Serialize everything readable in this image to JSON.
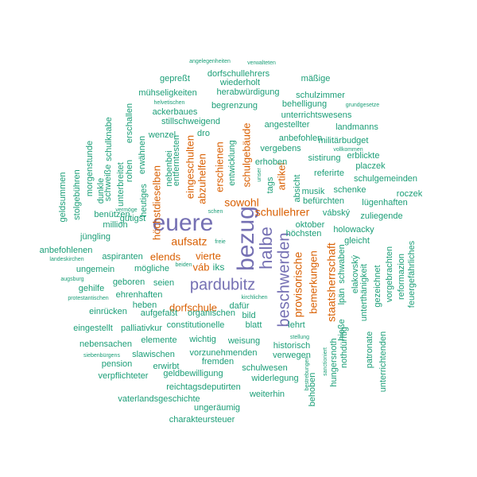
{
  "palette": {
    "green": "#1b9e77",
    "orange": "#d95f02",
    "purple": "#7570b3"
  },
  "words": [
    {
      "text": "bezug",
      "color": "purple"
    },
    {
      "text": "euere",
      "color": "purple"
    },
    {
      "text": "halbe",
      "color": "purple"
    },
    {
      "text": "beschwerden",
      "color": "purple"
    },
    {
      "text": "pardubitz",
      "color": "purple"
    },
    {
      "text": "schullehrer",
      "color": "orange"
    },
    {
      "text": "staatsherrschaft",
      "color": "orange"
    },
    {
      "text": "provisorische",
      "color": "orange"
    },
    {
      "text": "sowohl",
      "color": "orange"
    },
    {
      "text": "höchstdieselben",
      "color": "orange"
    },
    {
      "text": "aufsatz",
      "color": "orange"
    },
    {
      "text": "elends",
      "color": "orange"
    },
    {
      "text": "vierte",
      "color": "orange"
    },
    {
      "text": "dorfschule",
      "color": "orange"
    },
    {
      "text": "erschienen",
      "color": "orange"
    },
    {
      "text": "eingeschulten",
      "color": "orange"
    },
    {
      "text": "abzuhelfen",
      "color": "orange"
    },
    {
      "text": "schulgebäude",
      "color": "orange"
    },
    {
      "text": "artikel",
      "color": "orange"
    },
    {
      "text": "bemerkungen",
      "color": "orange"
    },
    {
      "text": "váb",
      "color": "orange"
    },
    {
      "text": "iks",
      "color": "green"
    },
    {
      "text": "angelegenheiten",
      "color": "green"
    },
    {
      "text": "verwalteten",
      "color": "green"
    },
    {
      "text": "dorfschullehrers",
      "color": "green"
    },
    {
      "text": "gepreßt",
      "color": "green"
    },
    {
      "text": "mäßige",
      "color": "green"
    },
    {
      "text": "wiederholt",
      "color": "green"
    },
    {
      "text": "herabwürdigung",
      "color": "green"
    },
    {
      "text": "mühseligkeiten",
      "color": "green"
    },
    {
      "text": "schulzimmer",
      "color": "green"
    },
    {
      "text": "helvetischen",
      "color": "green"
    },
    {
      "text": "begrenzung",
      "color": "green"
    },
    {
      "text": "behelligung",
      "color": "green"
    },
    {
      "text": "grundgesetze",
      "color": "green"
    },
    {
      "text": "ackerbaues",
      "color": "green"
    },
    {
      "text": "unterrichtswesens",
      "color": "green"
    },
    {
      "text": "stillschweigend",
      "color": "green"
    },
    {
      "text": "angestellter",
      "color": "green"
    },
    {
      "text": "landmanns",
      "color": "green"
    },
    {
      "text": "militärbudget",
      "color": "green"
    },
    {
      "text": "anbefohlen",
      "color": "green"
    },
    {
      "text": "vollkommen",
      "color": "green"
    },
    {
      "text": "vergebens",
      "color": "green"
    },
    {
      "text": "erblickte",
      "color": "green"
    },
    {
      "text": "wenzel",
      "color": "green"
    },
    {
      "text": "dro",
      "color": "green"
    },
    {
      "text": "erhoben",
      "color": "green"
    },
    {
      "text": "sistirung",
      "color": "green"
    },
    {
      "text": "placzek",
      "color": "green"
    },
    {
      "text": "referirte",
      "color": "green"
    },
    {
      "text": "schulgemeinden",
      "color": "green"
    },
    {
      "text": "schenke",
      "color": "green"
    },
    {
      "text": "musik",
      "color": "green"
    },
    {
      "text": "roczek",
      "color": "green"
    },
    {
      "text": "befürchten",
      "color": "green"
    },
    {
      "text": "lügenhaften",
      "color": "green"
    },
    {
      "text": "vábský",
      "color": "green"
    },
    {
      "text": "zuliegende",
      "color": "green"
    },
    {
      "text": "oktober",
      "color": "green"
    },
    {
      "text": "holowacky",
      "color": "green"
    },
    {
      "text": "höchsten",
      "color": "green"
    },
    {
      "text": "gleicht",
      "color": "green"
    },
    {
      "text": "schen",
      "color": "green"
    },
    {
      "text": "benützen",
      "color": "green"
    },
    {
      "text": "gütigst",
      "color": "green"
    },
    {
      "text": "million",
      "color": "green"
    },
    {
      "text": "jüngling",
      "color": "green"
    },
    {
      "text": "freie",
      "color": "green"
    },
    {
      "text": "anbefohlenen",
      "color": "green"
    },
    {
      "text": "landeskirchen",
      "color": "green"
    },
    {
      "text": "aspiranten",
      "color": "green"
    },
    {
      "text": "ungemein",
      "color": "green"
    },
    {
      "text": "mögliche",
      "color": "green"
    },
    {
      "text": "beiden",
      "color": "green"
    },
    {
      "text": "augsburg",
      "color": "green"
    },
    {
      "text": "gehilfe",
      "color": "green"
    },
    {
      "text": "geboren",
      "color": "green"
    },
    {
      "text": "seien",
      "color": "green"
    },
    {
      "text": "protestantischen",
      "color": "green"
    },
    {
      "text": "ehrenhaften",
      "color": "green"
    },
    {
      "text": "kirchlichen",
      "color": "green"
    },
    {
      "text": "heben",
      "color": "green"
    },
    {
      "text": "dafür",
      "color": "green"
    },
    {
      "text": "einrücken",
      "color": "green"
    },
    {
      "text": "aufgefaßt",
      "color": "green"
    },
    {
      "text": "organischen",
      "color": "green"
    },
    {
      "text": "bild",
      "color": "green"
    },
    {
      "text": "eingestellt",
      "color": "green"
    },
    {
      "text": "palliativkur",
      "color": "green"
    },
    {
      "text": "constitutionelle",
      "color": "green"
    },
    {
      "text": "blatt",
      "color": "green"
    },
    {
      "text": "lehrt",
      "color": "green"
    },
    {
      "text": "nebensachen",
      "color": "green"
    },
    {
      "text": "elemente",
      "color": "green"
    },
    {
      "text": "wichtig",
      "color": "green"
    },
    {
      "text": "weisung",
      "color": "green"
    },
    {
      "text": "stellung",
      "color": "green"
    },
    {
      "text": "siebenbürgens",
      "color": "green"
    },
    {
      "text": "slawischen",
      "color": "green"
    },
    {
      "text": "vorzunehmenden",
      "color": "green"
    },
    {
      "text": "historisch",
      "color": "green"
    },
    {
      "text": "pension",
      "color": "green"
    },
    {
      "text": "erwirbt",
      "color": "green"
    },
    {
      "text": "fremden",
      "color": "green"
    },
    {
      "text": "verwegen",
      "color": "green"
    },
    {
      "text": "verpflichteter",
      "color": "green"
    },
    {
      "text": "geldbewilligung",
      "color": "green"
    },
    {
      "text": "schulwesen",
      "color": "green"
    },
    {
      "text": "widerlegung",
      "color": "green"
    },
    {
      "text": "reichtagsdeputirten",
      "color": "green"
    },
    {
      "text": "vaterlandsgeschichte",
      "color": "green"
    },
    {
      "text": "weiterhin",
      "color": "green"
    },
    {
      "text": "ungeräumig",
      "color": "green"
    },
    {
      "text": "charakteursteuer",
      "color": "green"
    },
    {
      "text": "geldsummen",
      "color": "green"
    },
    {
      "text": "stolgebühren",
      "color": "green"
    },
    {
      "text": "morgenstunde",
      "color": "green"
    },
    {
      "text": "schulknabe",
      "color": "green"
    },
    {
      "text": "schweiße",
      "color": "green"
    },
    {
      "text": "dunkle",
      "color": "green"
    },
    {
      "text": "unterbreitet",
      "color": "green"
    },
    {
      "text": "rohen",
      "color": "green"
    },
    {
      "text": "erschallen",
      "color": "green"
    },
    {
      "text": "heutiges",
      "color": "green"
    },
    {
      "text": "vermöge",
      "color": "green"
    },
    {
      "text": "erwähnen",
      "color": "green"
    },
    {
      "text": "nebenbei",
      "color": "green"
    },
    {
      "text": "entferntesten",
      "color": "green"
    },
    {
      "text": "entwicklung",
      "color": "green"
    },
    {
      "text": "tags",
      "color": "green"
    },
    {
      "text": "unser",
      "color": "green"
    },
    {
      "text": "absicht",
      "color": "green"
    },
    {
      "text": "hungersnoth",
      "color": "green"
    },
    {
      "text": "lpän",
      "color": "green"
    },
    {
      "text": "schwaben",
      "color": "green"
    },
    {
      "text": "elakovský",
      "color": "green"
    },
    {
      "text": "unterthänigkeit",
      "color": "green"
    },
    {
      "text": "nothdürftig",
      "color": "green"
    },
    {
      "text": "hieße",
      "color": "green"
    },
    {
      "text": "gezeichnet",
      "color": "green"
    },
    {
      "text": "vorgebrachten",
      "color": "green"
    },
    {
      "text": "reformazion",
      "color": "green"
    },
    {
      "text": "feuergefährliches",
      "color": "green"
    },
    {
      "text": "patronate",
      "color": "green"
    },
    {
      "text": "unterrichtenden",
      "color": "green"
    },
    {
      "text": "behoben",
      "color": "green"
    },
    {
      "text": "sanctioniert",
      "color": "green"
    },
    {
      "text": "bestrebungen",
      "color": "green"
    }
  ]
}
